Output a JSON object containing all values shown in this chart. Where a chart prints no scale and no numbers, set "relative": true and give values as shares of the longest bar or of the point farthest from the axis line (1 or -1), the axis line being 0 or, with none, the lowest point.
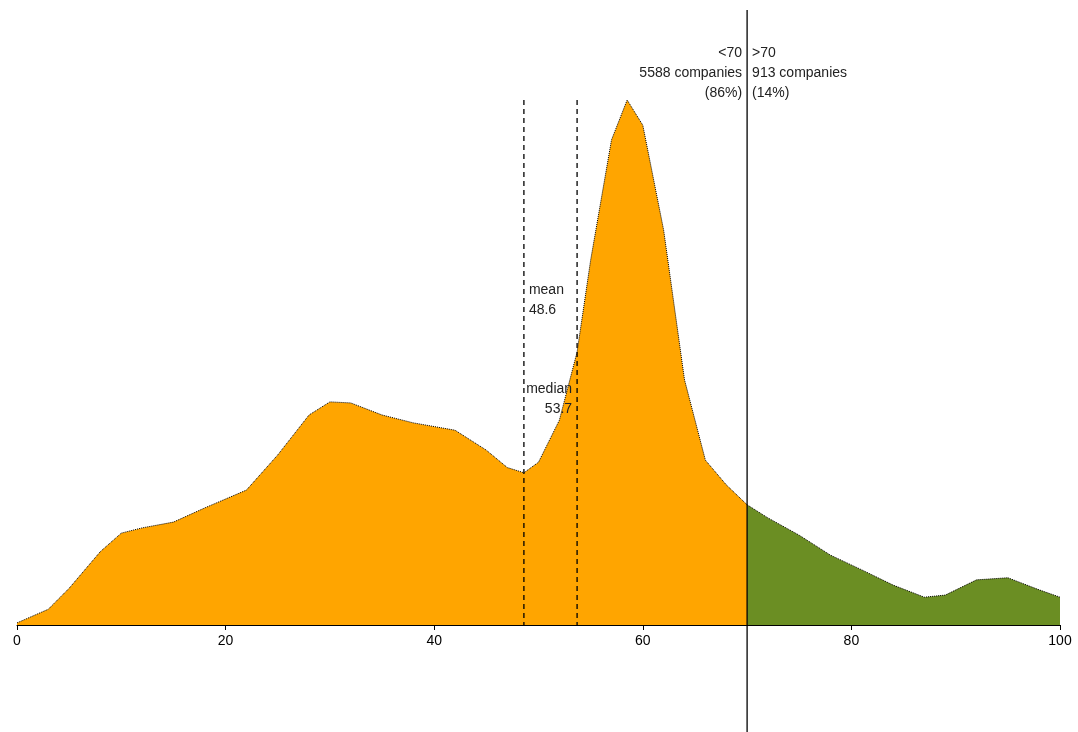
{
  "chart_data": {
    "type": "area",
    "relative": true,
    "grid": false,
    "line_style": "dotted",
    "marker": "none",
    "xlim": [
      0,
      100
    ],
    "xticks": [
      0,
      20,
      40,
      60,
      80,
      100
    ],
    "series": [
      {
        "color": "#ffa500",
        "x": [
          0,
          3,
          5,
          8,
          10,
          12,
          15,
          18,
          22,
          25,
          28,
          30,
          32,
          35,
          38,
          42,
          45,
          47,
          48.6,
          50,
          52,
          53.7,
          55,
          57,
          58.5,
          60,
          62,
          64,
          66,
          68,
          70
        ],
        "values": [
          0.004,
          0.03,
          0.07,
          0.14,
          0.175,
          0.185,
          0.196,
          0.223,
          0.257,
          0.324,
          0.4,
          0.425,
          0.423,
          0.4,
          0.385,
          0.371,
          0.333,
          0.3,
          0.29,
          0.31,
          0.39,
          0.52,
          0.695,
          0.924,
          1,
          0.952,
          0.752,
          0.467,
          0.314,
          0.267,
          0.229
        ]
      },
      {
        "color": "#6b8e23",
        "x": [
          70,
          72,
          75,
          78,
          81,
          84,
          87,
          89,
          92,
          95,
          98,
          100
        ],
        "values": [
          0.229,
          0.204,
          0.171,
          0.133,
          0.105,
          0.076,
          0.053,
          0.057,
          0.086,
          0.09,
          0.067,
          0.053
        ]
      }
    ],
    "ref_lines": [
      {
        "axis": "x",
        "value": 48.6,
        "label": "mean\n48.6",
        "line_style": "dashed"
      },
      {
        "axis": "x",
        "value": 53.7,
        "label": "median\n53.7",
        "line_style": "dashed"
      },
      {
        "axis": "x",
        "value": 70,
        "line_style": "solid"
      }
    ],
    "annotations": [
      "<70\n5588 companies\n(86%)",
      ">70\n913 companies\n(14%)"
    ]
  }
}
